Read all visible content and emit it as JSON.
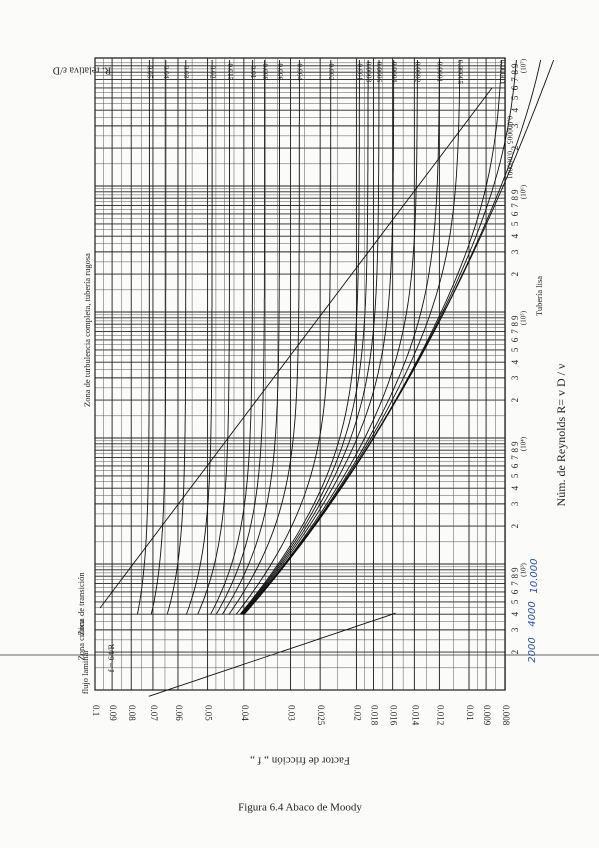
{
  "caption": "Figura 6.4  Abaco de Moody",
  "friction_axis": {
    "title": "Factor de fricción „ f „",
    "labels": [
      "0.1",
      "0.09",
      "0.08",
      "0.07",
      "0.06",
      "0.05",
      "0.04",
      "0.03",
      "0.025",
      "0.02",
      "0.018",
      "0.016",
      "0.014",
      "0.012",
      "0.01",
      "0.009",
      "0.008"
    ]
  },
  "roughness_axis": {
    "title": "R. relativa ε/D",
    "labels": [
      "0.05",
      "0.04",
      "0.03",
      "0.02",
      "0.015",
      "0.01",
      "0.008",
      "0.006",
      "0.004",
      "0.002",
      "0.001",
      "0.0008",
      "0.0006",
      "0.0004",
      "0.0002",
      "0.0001",
      "0.00005",
      "0.00001",
      "0.000005",
      "0.000001"
    ]
  },
  "reynolds_axis": {
    "title": "Núm. de Reynolds  R= v D / ν",
    "digits": [
      "2",
      "3",
      "4",
      "5",
      "6",
      "7",
      "8",
      "9"
    ],
    "decades": [
      "(10³)",
      "(10⁴)",
      "(10⁵)",
      "(10⁶)",
      "(10⁷)"
    ]
  },
  "zones": {
    "laminar": "flujo laminar",
    "critical": "Zona crítica",
    "transition": "Zona de transición",
    "turbulent": "Zona de turbulencia completa, tubería rugosa",
    "laminar_formula": "f = 64/R",
    "smooth": "Tubería lisa"
  },
  "handwritten": [
    "2000",
    "4000",
    "10.000"
  ]
}
